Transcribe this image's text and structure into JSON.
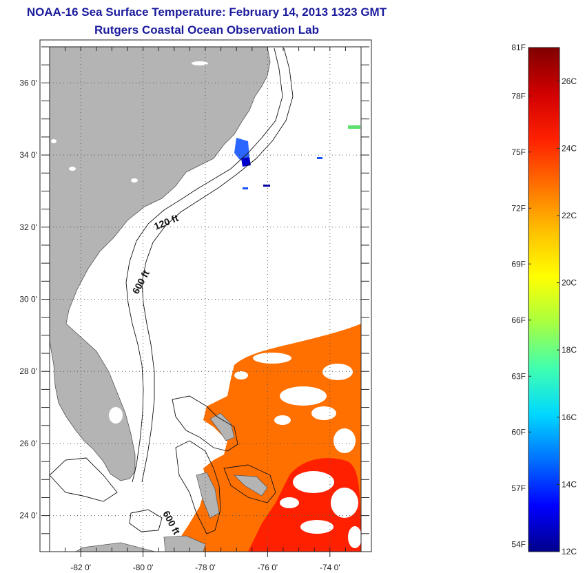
{
  "title": "NOAA-16 Sea Surface Temperature:  February 14, 2013 1323 GMT",
  "subtitle": "Rutgers Coastal Ocean Observation Lab",
  "map": {
    "lon_range": [
      -83,
      -73
    ],
    "lat_range": [
      23,
      37
    ],
    "lon_ticks": [
      {
        "value": -82,
        "label": "-82 0'"
      },
      {
        "value": -80,
        "label": "-80 0'"
      },
      {
        "value": -78,
        "label": "-78 0'"
      },
      {
        "value": -76,
        "label": "-76 0'"
      },
      {
        "value": -74,
        "label": "-74 0'"
      }
    ],
    "lat_ticks": [
      {
        "value": 36,
        "label": "36 0'"
      },
      {
        "value": 34,
        "label": "34 0'"
      },
      {
        "value": 32,
        "label": "32 0'"
      },
      {
        "value": 30,
        "label": "30 0'"
      },
      {
        "value": 28,
        "label": "28 0'"
      },
      {
        "value": 26,
        "label": "26 0'"
      },
      {
        "value": 24,
        "label": "24 0'"
      }
    ],
    "contour_labels": [
      "120 ft",
      "600 ft",
      "600 ft"
    ],
    "colors": {
      "land": "#b4b4b4",
      "grid": "#555555"
    }
  },
  "colorbar": {
    "range_c": [
      12,
      27
    ],
    "fahrenheit_labels": [
      {
        "label": "81F",
        "celsius": 27.22
      },
      {
        "label": "78F",
        "celsius": 25.56
      },
      {
        "label": "75F",
        "celsius": 23.89
      },
      {
        "label": "72F",
        "celsius": 22.22
      },
      {
        "label": "69F",
        "celsius": 20.56
      },
      {
        "label": "66F",
        "celsius": 18.89
      },
      {
        "label": "63F",
        "celsius": 17.22
      },
      {
        "label": "60F",
        "celsius": 15.56
      },
      {
        "label": "57F",
        "celsius": 13.89
      },
      {
        "label": "54F",
        "celsius": 12.22
      }
    ],
    "celsius_labels": [
      {
        "label": "26C",
        "celsius": 26
      },
      {
        "label": "24C",
        "celsius": 24
      },
      {
        "label": "22C",
        "celsius": 22
      },
      {
        "label": "20C",
        "celsius": 20
      },
      {
        "label": "18C",
        "celsius": 18
      },
      {
        "label": "16C",
        "celsius": 16
      },
      {
        "label": "14C",
        "celsius": 14
      },
      {
        "label": "12C",
        "celsius": 12
      }
    ],
    "colors": [
      "#00008c",
      "#0000ff",
      "#0070ff",
      "#00d8ff",
      "#40ffb0",
      "#a8ff40",
      "#ffff00",
      "#ffc000",
      "#ff7000",
      "#ff2000",
      "#d00000",
      "#800000"
    ]
  }
}
